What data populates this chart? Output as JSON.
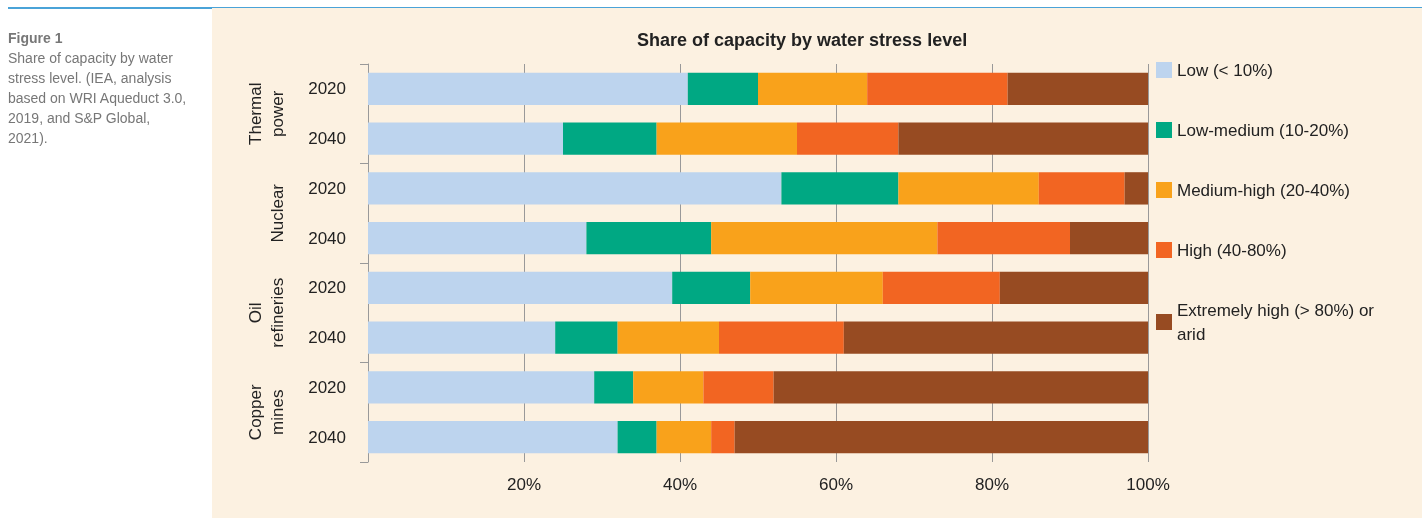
{
  "chart_data": {
    "type": "bar",
    "orientation": "horizontal",
    "stacked": true,
    "title": "Share of capacity by water stress level",
    "subtitle": "Figure 1",
    "annotations": [
      "Share of capacity by water stress level. (IEA, analysis based on WRI Aqueduct 3.0, 2019, and S&P Global, 2021).",
      "Thermal power",
      "Nuclear",
      "Oil refineries",
      "Copper mines"
    ],
    "categories": [
      "2020",
      "2040",
      "2020",
      "2040",
      "2020",
      "2040",
      "2020",
      "2040"
    ],
    "series": [
      {
        "name": "Low (< 10%)",
        "color": "#bdd4ee",
        "values": [
          41,
          25,
          53,
          28,
          39,
          24,
          29,
          32
        ]
      },
      {
        "name": "Low-medium (10-20%)",
        "color": "#00a883",
        "values": [
          9,
          12,
          15,
          16,
          10,
          8,
          5,
          5
        ]
      },
      {
        "name": "Medium-high (20-40%)",
        "color": "#f9a21b",
        "values": [
          14,
          18,
          18,
          29,
          17,
          13,
          9,
          7
        ]
      },
      {
        "name": "High (40-80%)",
        "color": "#f26522",
        "values": [
          18,
          13,
          11,
          17,
          15,
          16,
          9,
          3
        ]
      },
      {
        "name": "Extremely high (> 80%) or arid",
        "color": "#974b22",
        "values": [
          18,
          32,
          3,
          10,
          19,
          39,
          48,
          53
        ]
      }
    ],
    "xlim": [
      0,
      100
    ],
    "xticks": [
      {
        "value": 20,
        "label": "20%"
      },
      {
        "value": 40,
        "label": "40%"
      },
      {
        "value": 60,
        "label": "60%"
      },
      {
        "value": 80,
        "label": "80%"
      },
      {
        "value": 100,
        "label": "100%"
      }
    ],
    "grid": "x",
    "legend": "right"
  }
}
